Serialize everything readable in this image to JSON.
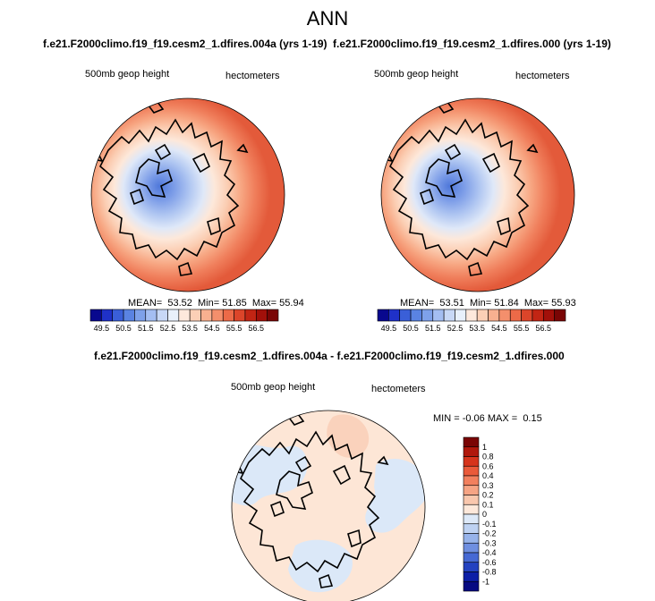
{
  "page": {
    "title": "ANN"
  },
  "panels": [
    {
      "title": "f.e21.F2000climo.f19_f19.cesm2_1.dfires.004a (yrs 1-19)",
      "variable": "500mb geop height",
      "units": "hectometers",
      "stats": {
        "mean_label": "MEAN=",
        "mean": "53.52",
        "min_label": "Min=",
        "min": "51.85",
        "max_label": "Max=",
        "max": "55.94"
      },
      "colorbar": {
        "ticks": [
          "49.5",
          "50.5",
          "51.5",
          "52.5",
          "53.5",
          "54.5",
          "55.5",
          "56.5"
        ],
        "colors": [
          "#08088e",
          "#1f31c8",
          "#3a5fd8",
          "#5a83e2",
          "#7ea1ea",
          "#a4bef2",
          "#c8d8f6",
          "#e8f0fb",
          "#fde8dc",
          "#fbcfb6",
          "#f8b090",
          "#f48f6c",
          "#ec6a48",
          "#dc452a",
          "#c22514",
          "#a2100a",
          "#7a0505"
        ]
      }
    },
    {
      "title": "f.e21.F2000climo.f19_f19.cesm2_1.dfires.000 (yrs 1-19)",
      "variable": "500mb geop height",
      "units": "hectometers",
      "stats": {
        "mean_label": "MEAN=",
        "mean": "53.51",
        "min_label": "Min=",
        "min": "51.84",
        "max_label": "Max=",
        "max": "55.93"
      },
      "colorbar": {
        "ticks": [
          "49.5",
          "50.5",
          "51.5",
          "52.5",
          "53.5",
          "54.5",
          "55.5",
          "56.5"
        ],
        "colors": [
          "#08088e",
          "#1f31c8",
          "#3a5fd8",
          "#5a83e2",
          "#7ea1ea",
          "#a4bef2",
          "#c8d8f6",
          "#e8f0fb",
          "#fde8dc",
          "#fbcfb6",
          "#f8b090",
          "#f48f6c",
          "#ec6a48",
          "#dc452a",
          "#c22514",
          "#a2100a",
          "#7a0505"
        ]
      }
    }
  ],
  "difference": {
    "title": "f.e21.F2000climo.f19_f19.cesm2_1.dfires.004a - f.e21.F2000climo.f19_f19.cesm2_1.dfires.000",
    "variable": "500mb geop height",
    "units": "hectometers",
    "stats": {
      "min_label": "MIN =",
      "min": "-0.06",
      "max_label": "MAX =",
      "max": "0.15"
    },
    "colorbar": {
      "ticks": [
        "1",
        "0.8",
        "0.6",
        "0.4",
        "0.3",
        "0.2",
        "0.1",
        "0",
        "-0.1",
        "-0.2",
        "-0.3",
        "-0.4",
        "-0.6",
        "-0.8",
        "-1"
      ],
      "colors": [
        "#7a0505",
        "#b0180c",
        "#d6341c",
        "#ea5a3a",
        "#f2805e",
        "#f6a484",
        "#f9c7ad",
        "#fde8da",
        "#dde9f8",
        "#bed2f2",
        "#97b3ea",
        "#6f8fe0",
        "#4669d4",
        "#2342c0",
        "#0c1ea6",
        "#060a82"
      ]
    }
  },
  "colors": {
    "land_outline": "#000000",
    "difference_warm": "#fde6d6",
    "difference_cool": "#dbe8f8"
  }
}
